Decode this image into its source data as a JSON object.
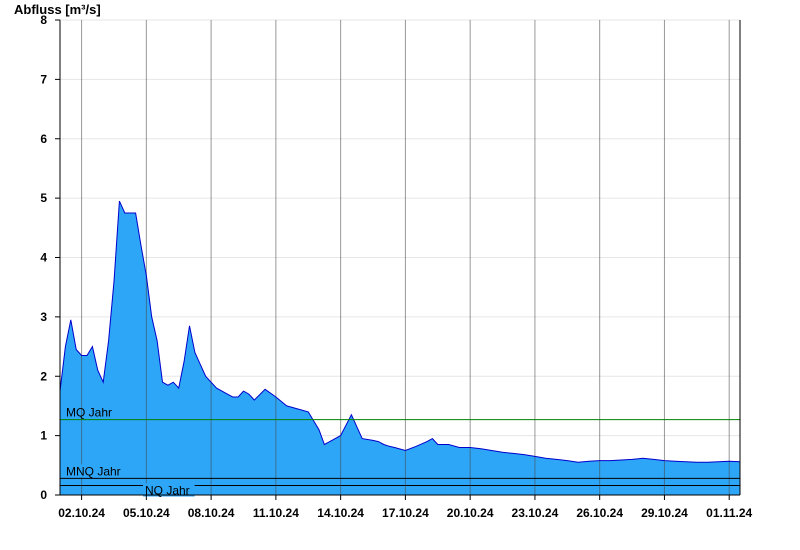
{
  "chart_data": {
    "type": "area",
    "ylabel": "Abfluss [m³/s]",
    "ylim": [
      0,
      8
    ],
    "yticks": [
      0,
      1,
      2,
      3,
      4,
      5,
      6,
      7,
      8
    ],
    "xlim": [
      "2024-10-01T00:00",
      "2024-11-01T12:00"
    ],
    "xtick_labels": [
      "02.10.24",
      "05.10.24",
      "08.10.24",
      "11.10.24",
      "14.10.24",
      "17.10.24",
      "20.10.24",
      "23.10.24",
      "26.10.24",
      "29.10.24",
      "01.11.24"
    ],
    "grid": true,
    "fill_color": "#2ea6f7",
    "line_color": "#0000cc",
    "series": [
      {
        "x": [
          "2024-10-01T00:00",
          "2024-10-01T06:00",
          "2024-10-01T12:00",
          "2024-10-01T18:00",
          "2024-10-02T00:00",
          "2024-10-02T06:00",
          "2024-10-02T12:00",
          "2024-10-02T18:00",
          "2024-10-03T00:00",
          "2024-10-03T06:00",
          "2024-10-03T12:00",
          "2024-10-03T18:00",
          "2024-10-04T00:00",
          "2024-10-04T06:00",
          "2024-10-04T12:00",
          "2024-10-04T18:00",
          "2024-10-05T00:00",
          "2024-10-05T06:00",
          "2024-10-05T12:00",
          "2024-10-05T18:00",
          "2024-10-06T00:00",
          "2024-10-06T06:00",
          "2024-10-06T12:00",
          "2024-10-06T18:00",
          "2024-10-07T00:00",
          "2024-10-07T06:00",
          "2024-10-07T12:00",
          "2024-10-07T18:00",
          "2024-10-08T00:00",
          "2024-10-08T06:00",
          "2024-10-08T12:00",
          "2024-10-08T18:00",
          "2024-10-09T00:00",
          "2024-10-09T06:00",
          "2024-10-09T12:00",
          "2024-10-09T18:00",
          "2024-10-10T00:00",
          "2024-10-10T12:00",
          "2024-10-11T00:00",
          "2024-10-11T12:00",
          "2024-10-12T00:00",
          "2024-10-12T12:00",
          "2024-10-13T00:00",
          "2024-10-13T06:00",
          "2024-10-13T12:00",
          "2024-10-14T00:00",
          "2024-10-14T12:00",
          "2024-10-15T00:00",
          "2024-10-15T12:00",
          "2024-10-15T18:00",
          "2024-10-16T00:00",
          "2024-10-16T06:00",
          "2024-10-16T12:00",
          "2024-10-17T00:00",
          "2024-10-17T12:00",
          "2024-10-18T00:00",
          "2024-10-18T06:00",
          "2024-10-18T12:00",
          "2024-10-19T00:00",
          "2024-10-19T12:00",
          "2024-10-20T00:00",
          "2024-10-20T12:00",
          "2024-10-21T00:00",
          "2024-10-21T12:00",
          "2024-10-22T00:00",
          "2024-10-22T12:00",
          "2024-10-23T00:00",
          "2024-10-23T12:00",
          "2024-10-24T00:00",
          "2024-10-24T12:00",
          "2024-10-25T00:00",
          "2024-10-25T12:00",
          "2024-10-26T00:00",
          "2024-10-26T12:00",
          "2024-10-27T00:00",
          "2024-10-27T12:00",
          "2024-10-28T00:00",
          "2024-10-28T12:00",
          "2024-10-29T00:00",
          "2024-10-29T12:00",
          "2024-10-30T00:00",
          "2024-10-30T12:00",
          "2024-10-31T00:00",
          "2024-10-31T12:00",
          "2024-11-01T00:00",
          "2024-11-01T12:00"
        ],
        "values": [
          1.75,
          2.5,
          2.95,
          2.45,
          2.35,
          2.35,
          2.5,
          2.1,
          1.9,
          2.6,
          3.6,
          4.95,
          4.75,
          4.75,
          4.75,
          4.2,
          3.7,
          3.0,
          2.6,
          1.9,
          1.85,
          1.9,
          1.8,
          2.25,
          2.85,
          2.4,
          2.2,
          2.0,
          1.9,
          1.8,
          1.75,
          1.7,
          1.65,
          1.65,
          1.75,
          1.7,
          1.6,
          1.78,
          1.65,
          1.5,
          1.45,
          1.4,
          1.1,
          0.85,
          0.9,
          1.0,
          1.35,
          0.95,
          0.92,
          0.9,
          0.85,
          0.82,
          0.8,
          0.75,
          0.82,
          0.9,
          0.95,
          0.85,
          0.85,
          0.8,
          0.8,
          0.78,
          0.75,
          0.72,
          0.7,
          0.68,
          0.65,
          0.62,
          0.6,
          0.58,
          0.55,
          0.57,
          0.58,
          0.58,
          0.59,
          0.6,
          0.62,
          0.6,
          0.58,
          0.57,
          0.56,
          0.55,
          0.55,
          0.56,
          0.57,
          0.56
        ]
      }
    ],
    "reference_lines": [
      {
        "label": "MQ Jahr",
        "value": 1.27,
        "color": "#008000"
      },
      {
        "label": "MNQ Jahr",
        "value": 0.28,
        "color": "#000000"
      },
      {
        "label": "NQ Jahr",
        "value": 0.16,
        "color": "#000000"
      }
    ]
  }
}
